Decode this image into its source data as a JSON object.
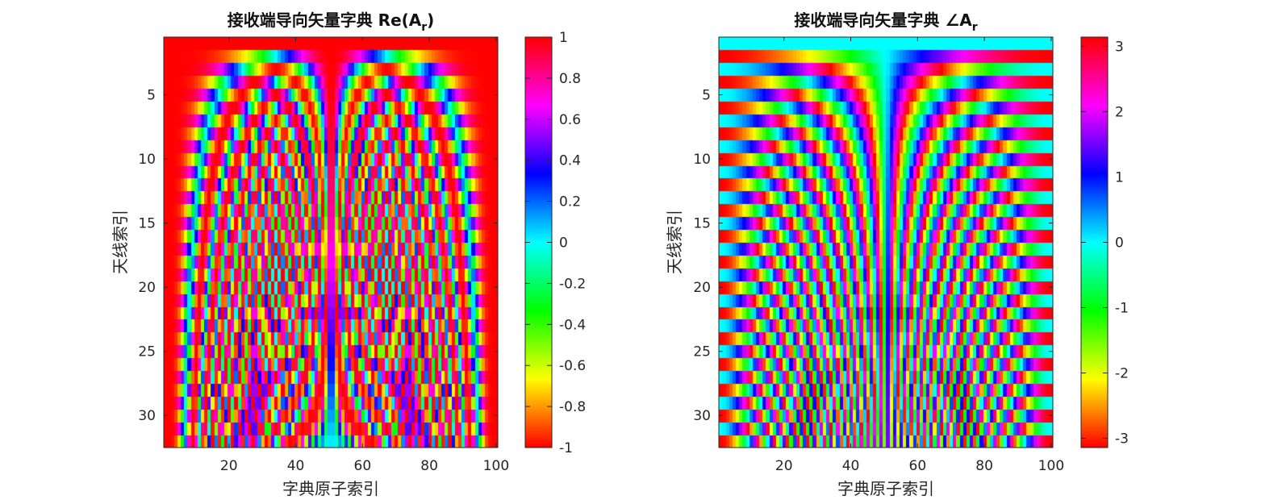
{
  "chart_data": [
    {
      "type": "heatmap",
      "title_main": "接收端导向矢量字典  Re(A",
      "title_sub": "r",
      "title_end": ")",
      "xlabel": "字典原子索引",
      "ylabel": "天线索引",
      "n_rows": 32,
      "n_cols": 100,
      "xlim": [
        1,
        100
      ],
      "ylim": [
        1,
        32
      ],
      "xticks": [
        20,
        40,
        60,
        80,
        100
      ],
      "yticks": [
        5,
        10,
        15,
        20,
        25,
        30
      ],
      "y_reversed": true,
      "value_function": "cos(pi*(n-1)*sin(theta_k))",
      "clim": [
        -1,
        1
      ],
      "colorbar_ticks": [
        -1,
        -0.8,
        -0.6,
        -0.4,
        -0.2,
        0,
        0.2,
        0.4,
        0.6,
        0.8,
        1
      ],
      "colormap": "hsv"
    },
    {
      "type": "heatmap",
      "title_main": "接收端导向矢量字典  ∠A",
      "title_sub": "r",
      "title_end": "",
      "xlabel": "字典原子索引",
      "ylabel": "天线索引",
      "n_rows": 32,
      "n_cols": 100,
      "xlim": [
        1,
        100
      ],
      "ylim": [
        1,
        32
      ],
      "xticks": [
        20,
        40,
        60,
        80,
        100
      ],
      "yticks": [
        5,
        10,
        15,
        20,
        25,
        30
      ],
      "y_reversed": true,
      "value_function": "angle(exp(j*pi*(n-1)*sin(theta_k)))",
      "clim": [
        -3.1416,
        3.1416
      ],
      "colorbar_ticks": [
        -3,
        -2,
        -1,
        0,
        1,
        2,
        3
      ],
      "colormap": "hsv"
    }
  ],
  "colors": {
    "hsv_stops": [
      "#ff0000",
      "#ffff00",
      "#00ff00",
      "#00ffff",
      "#0000ff",
      "#ff00ff",
      "#ff0000"
    ]
  }
}
